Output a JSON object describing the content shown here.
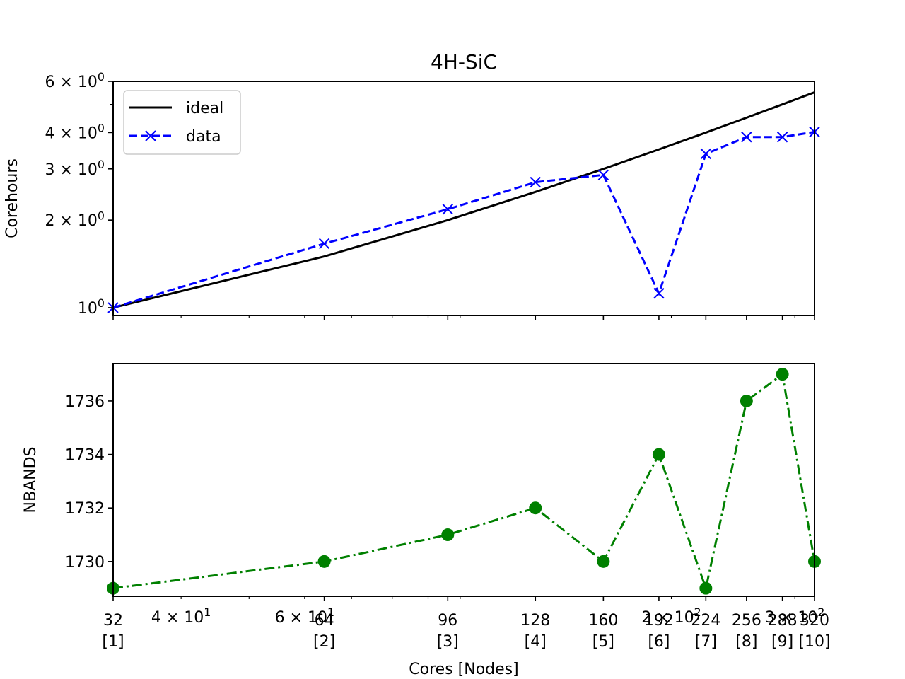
{
  "chart_data": [
    {
      "type": "line",
      "title": "4H-SiC",
      "xlabel": "",
      "ylabel": "Corehours",
      "xscale": "log",
      "yscale": "log",
      "xlim": [
        32,
        320
      ],
      "ylim": [
        0.94,
        6.0
      ],
      "y_ticks": [
        {
          "value": 1,
          "label": "10",
          "exp": "0"
        },
        {
          "value": 2,
          "label": "2 × 10",
          "exp": "0"
        },
        {
          "value": 3,
          "label": "3 × 10",
          "exp": "0"
        },
        {
          "value": 4,
          "label": "4 × 10",
          "exp": "0"
        },
        {
          "value": 6,
          "label": "6 × 10",
          "exp": "0"
        }
      ],
      "legend": {
        "placement": "upper-left",
        "entries": [
          "ideal",
          "data"
        ]
      },
      "x": [
        32,
        64,
        96,
        128,
        160,
        192,
        224,
        256,
        288,
        320
      ],
      "series": [
        {
          "name": "ideal",
          "color": "#000000",
          "style": "solid",
          "marker": "none",
          "values": [
            1.0,
            1.5,
            2.0,
            2.5,
            3.0,
            3.5,
            4.0,
            4.5,
            5.0,
            5.5
          ]
        },
        {
          "name": "data",
          "color": "#0000ff",
          "style": "dashed",
          "marker": "x",
          "values": [
            1.0,
            1.66,
            2.18,
            2.7,
            2.86,
            1.12,
            3.38,
            3.86,
            3.86,
            4.02
          ]
        }
      ]
    },
    {
      "type": "line",
      "title": "",
      "xlabel": "Cores [Nodes]",
      "ylabel": "NBANDS",
      "xscale": "log",
      "yscale": "linear",
      "xlim": [
        32,
        320
      ],
      "ylim": [
        1728.7,
        1737.4
      ],
      "y_ticks": [
        {
          "value": 1730,
          "label": "1730"
        },
        {
          "value": 1732,
          "label": "1732"
        },
        {
          "value": 1734,
          "label": "1734"
        },
        {
          "value": 1736,
          "label": "1736"
        }
      ],
      "x": [
        32,
        64,
        96,
        128,
        160,
        192,
        224,
        256,
        288,
        320
      ],
      "series": [
        {
          "color": "#008000",
          "style": "dashdot",
          "marker": "o",
          "values": [
            1729,
            1730,
            1731,
            1732,
            1730,
            1734,
            1729,
            1736,
            1737,
            1730
          ]
        }
      ],
      "x_tick_labels": [
        {
          "value": 32,
          "cores": "32",
          "nodes": "[1]"
        },
        {
          "value": 64,
          "cores": "64",
          "nodes": "[2]"
        },
        {
          "value": 96,
          "cores": "96",
          "nodes": "[3]"
        },
        {
          "value": 128,
          "cores": "128",
          "nodes": "[4]"
        },
        {
          "value": 160,
          "cores": "160",
          "nodes": "[5]"
        },
        {
          "value": 192,
          "cores": "192",
          "nodes": "[6]"
        },
        {
          "value": 224,
          "cores": "224",
          "nodes": "[7]"
        },
        {
          "value": 256,
          "cores": "256",
          "nodes": "[8]"
        },
        {
          "value": 288,
          "cores": "288",
          "nodes": "[9]"
        },
        {
          "value": 320,
          "cores": "320",
          "nodes": "[10]"
        }
      ],
      "x_log_tick_labels": [
        {
          "value": 40,
          "label": "4 × 10",
          "exp": "1"
        },
        {
          "value": 60,
          "label": "6 × 10",
          "exp": "1"
        },
        {
          "value": 200,
          "label": "2 × 10",
          "exp": "2"
        },
        {
          "value": 300,
          "label": "3 × 10",
          "exp": "2"
        }
      ]
    }
  ]
}
